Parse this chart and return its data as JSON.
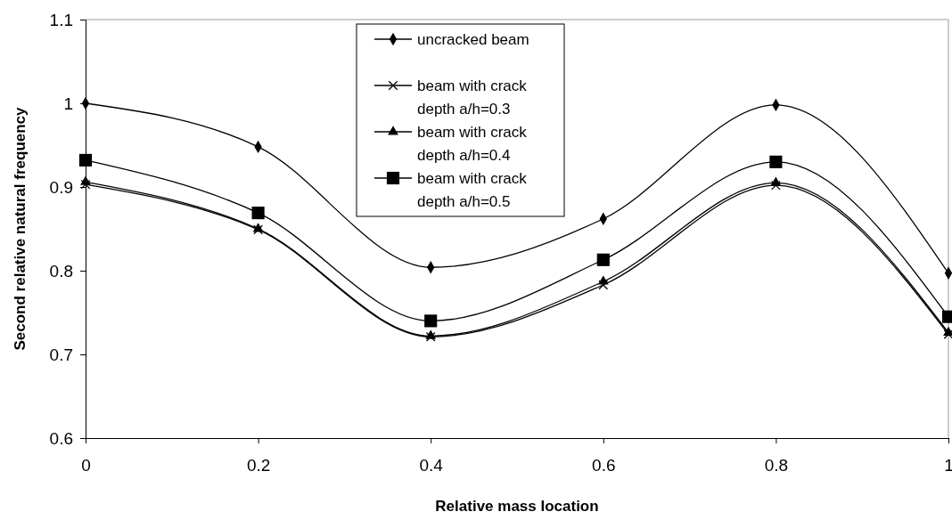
{
  "chart_data": {
    "type": "line",
    "xlabel": "Relative mass location",
    "ylabel": "Second relative natural frequency",
    "x": [
      0,
      0.2,
      0.4,
      0.6,
      0.8,
      1
    ],
    "series": [
      {
        "name": "uncracked beam",
        "color": "#000000",
        "marker": "diamond",
        "values": [
          1.0,
          0.948,
          0.804,
          0.862,
          0.998,
          0.797
        ]
      },
      {
        "name": "beam with crack depth a/h=0.3",
        "color": "#000000",
        "marker": "cross",
        "values": [
          0.903,
          0.849,
          0.721,
          0.783,
          0.902,
          0.724
        ]
      },
      {
        "name": "beam with crack depth a/h=0.4",
        "color": "#000000",
        "marker": "triangle",
        "values": [
          0.906,
          0.85,
          0.722,
          0.787,
          0.905,
          0.726
        ]
      },
      {
        "name": "beam with crack depth a/h=0.5",
        "color": "#000000",
        "marker": "square",
        "values": [
          0.932,
          0.869,
          0.74,
          0.813,
          0.93,
          0.745
        ]
      }
    ],
    "xlim": [
      0,
      1
    ],
    "xticks": [
      0,
      0.2,
      0.4,
      0.6,
      0.8,
      1
    ],
    "ylim": [
      0.6,
      1.1
    ],
    "yticks": [
      0.6,
      0.7,
      0.8,
      0.9,
      1,
      1.1
    ],
    "grid": false,
    "legend": "top",
    "line_style": "solid"
  }
}
